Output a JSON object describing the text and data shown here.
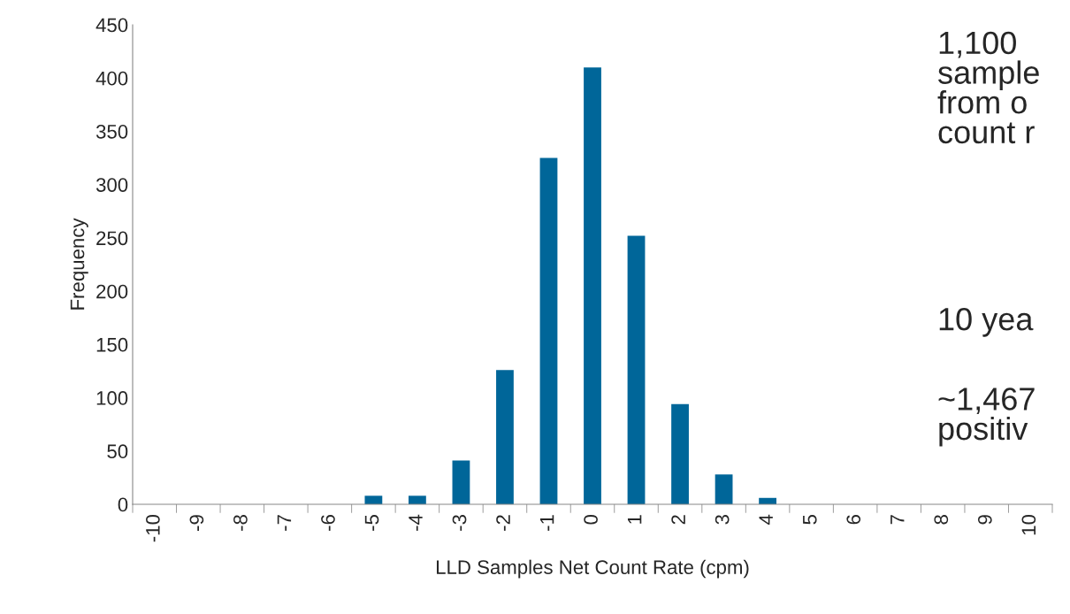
{
  "chart_data": {
    "type": "bar",
    "xlabel": "LLD Samples Net Count Rate (cpm)",
    "ylabel": "Frequency",
    "categories": [
      "-10",
      "-9",
      "-8",
      "-7",
      "-6",
      "-5",
      "-4",
      "-3",
      "-2",
      "-1",
      "0",
      "1",
      "2",
      "3",
      "4",
      "5",
      "6",
      "7",
      "8",
      "9",
      "10"
    ],
    "values": [
      0,
      0,
      0,
      null,
      null,
      8,
      8,
      41,
      126,
      325,
      410,
      252,
      94,
      28,
      6,
      0,
      0,
      0,
      0,
      0,
      0
    ],
    "color": "#006699",
    "ylim": [
      0,
      450
    ],
    "yticks": [
      0,
      50,
      100,
      150,
      200,
      250,
      300,
      350,
      400,
      450
    ],
    "grid": false,
    "legend": false,
    "annotations": [
      "1,100\nsample\nfrom o\ncount r",
      "10 yea",
      "~1,467\npositiv"
    ]
  }
}
